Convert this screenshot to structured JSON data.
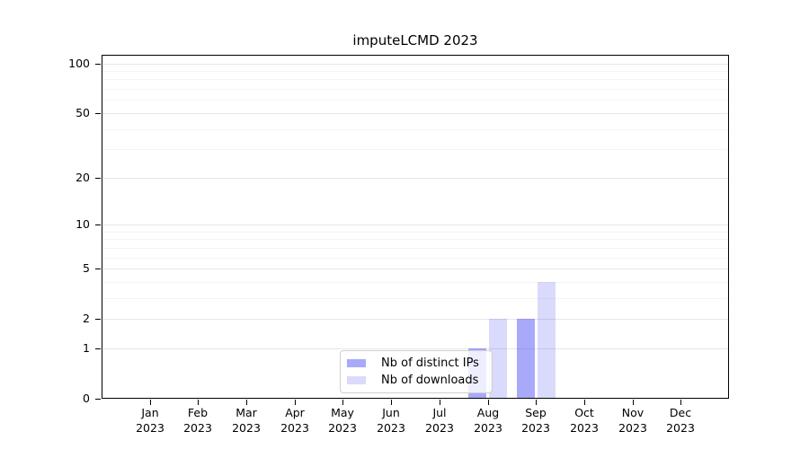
{
  "chart_data": {
    "type": "bar",
    "title": "imputeLCMD 2023",
    "categories": [
      "Jan 2023",
      "Feb 2023",
      "Mar 2023",
      "Apr 2023",
      "May 2023",
      "Jun 2023",
      "Jul 2023",
      "Aug 2023",
      "Sep 2023",
      "Oct 2023",
      "Nov 2023",
      "Dec 2023"
    ],
    "series": [
      {
        "name": "Nb of distinct IPs",
        "color": "rgba(10,10,240,0.35)",
        "values": [
          0,
          0,
          0,
          0,
          0,
          0,
          0,
          1,
          2,
          0,
          0,
          0
        ]
      },
      {
        "name": "Nb of downloads",
        "color": "rgba(10,10,240,0.15)",
        "values": [
          0,
          0,
          0,
          0,
          0,
          0,
          0,
          2,
          4,
          0,
          0,
          0
        ]
      }
    ],
    "xlabel": "",
    "ylabel": "",
    "yscale": "log1p",
    "ytick_labels": [
      "0",
      "1",
      "2",
      "5",
      "10",
      "20",
      "50",
      "100"
    ],
    "yticks": [
      0,
      1,
      2,
      5,
      10,
      20,
      50,
      100
    ],
    "yminor": [
      3,
      4,
      6,
      7,
      8,
      9,
      30,
      40,
      60,
      70,
      80,
      90
    ],
    "ylim": [
      0,
      113
    ],
    "grid": "horizontal",
    "legend_position": "lower center",
    "colors": {
      "frame": "#000000",
      "grid_major": "#e6e6e6",
      "grid_minor": "#f4f4f4",
      "background": "#ffffff"
    }
  }
}
